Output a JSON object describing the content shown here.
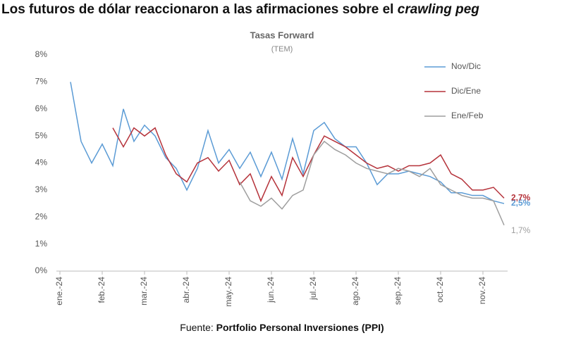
{
  "chart_data": {
    "type": "line",
    "title": "Los futuros de dólar reaccionaron a las afirmaciones sobre el",
    "title_emphasis": "crawling peg",
    "subtitle": "Tasas Forward",
    "subtitle_unit": "(TEM)",
    "source_label": "Fuente:",
    "source": "Portfolio Personal Inversiones (PPI)",
    "categories": [
      "ene.-24",
      null,
      null,
      null,
      "feb.-24",
      null,
      null,
      null,
      "mar.-24",
      null,
      null,
      null,
      "abr.-24",
      null,
      null,
      null,
      "may.-24",
      null,
      null,
      null,
      "jun.-24",
      null,
      null,
      null,
      "jul.-24",
      null,
      null,
      null,
      "ago.-24",
      null,
      null,
      null,
      "sep.-24",
      null,
      null,
      null,
      "oct.-24",
      null,
      null,
      null,
      "nov.-24",
      null,
      null
    ],
    "ylim": [
      0,
      8
    ],
    "yticks": [
      {
        "value": 0,
        "label": "0%"
      },
      {
        "value": 1,
        "label": "1%"
      },
      {
        "value": 2,
        "label": "2%"
      },
      {
        "value": 3,
        "label": "3%"
      },
      {
        "value": 4,
        "label": "4%"
      },
      {
        "value": 5,
        "label": "5%"
      },
      {
        "value": 6,
        "label": "6%"
      },
      {
        "value": 7,
        "label": "7%"
      },
      {
        "value": 8,
        "label": "8%"
      }
    ],
    "legend": "top-right",
    "series": [
      {
        "name": "Nov/Dic",
        "color": "#5b9bd5",
        "label_bold": true,
        "values": [
          null,
          7.0,
          4.8,
          4.0,
          4.7,
          3.9,
          6.0,
          4.8,
          5.4,
          5.0,
          4.2,
          3.8,
          3.0,
          3.8,
          5.2,
          4.0,
          4.5,
          3.8,
          4.4,
          3.5,
          4.4,
          3.4,
          4.9,
          3.6,
          5.2,
          5.5,
          4.9,
          4.6,
          4.6,
          4.0,
          3.2,
          3.6,
          3.6,
          3.7,
          3.6,
          3.5,
          3.3,
          2.9,
          2.9,
          2.8,
          2.8,
          2.6,
          2.5
        ],
        "value_labels": [
          null,
          null,
          null,
          null,
          null,
          null,
          null,
          null,
          null,
          null,
          null,
          null,
          null,
          null,
          null,
          null,
          null,
          null,
          null,
          null,
          null,
          null,
          null,
          null,
          null,
          null,
          null,
          null,
          null,
          null,
          null,
          null,
          null,
          null,
          null,
          null,
          null,
          null,
          null,
          null,
          null,
          null,
          "2,5%"
        ]
      },
      {
        "name": "Dic/Ene",
        "color": "#b5323a",
        "label_bold": true,
        "values": [
          null,
          null,
          null,
          null,
          null,
          5.3,
          4.6,
          5.3,
          5.0,
          5.3,
          4.3,
          3.6,
          3.3,
          4.0,
          4.2,
          3.7,
          4.1,
          3.2,
          3.6,
          2.6,
          3.5,
          2.8,
          4.2,
          3.5,
          4.3,
          5.0,
          4.8,
          4.6,
          4.3,
          4.0,
          3.8,
          3.9,
          3.7,
          3.9,
          3.9,
          4.0,
          4.3,
          3.6,
          3.4,
          3.0,
          3.0,
          3.1,
          2.7
        ],
        "value_labels": [
          null,
          null,
          null,
          null,
          null,
          null,
          null,
          null,
          null,
          null,
          null,
          null,
          null,
          null,
          null,
          null,
          null,
          null,
          null,
          null,
          null,
          null,
          null,
          null,
          null,
          null,
          null,
          null,
          null,
          null,
          null,
          null,
          null,
          null,
          null,
          null,
          null,
          null,
          null,
          null,
          null,
          null,
          "2,7%"
        ]
      },
      {
        "name": "Ene/Feb",
        "color": "#9e9e9e",
        "label_bold": false,
        "values": [
          null,
          null,
          null,
          null,
          null,
          null,
          null,
          null,
          null,
          null,
          null,
          null,
          null,
          null,
          null,
          null,
          null,
          3.3,
          2.6,
          2.4,
          2.7,
          2.3,
          2.8,
          3.0,
          4.3,
          4.8,
          4.5,
          4.3,
          4.0,
          3.8,
          3.7,
          3.6,
          3.8,
          3.7,
          3.5,
          3.8,
          3.2,
          3.0,
          2.8,
          2.7,
          2.7,
          2.6,
          1.7
        ],
        "value_labels": [
          null,
          null,
          null,
          null,
          null,
          null,
          null,
          null,
          null,
          null,
          null,
          null,
          null,
          null,
          null,
          null,
          null,
          null,
          null,
          null,
          null,
          null,
          null,
          null,
          null,
          null,
          null,
          null,
          null,
          null,
          null,
          null,
          null,
          null,
          null,
          null,
          null,
          null,
          null,
          null,
          null,
          null,
          "1,7%"
        ]
      }
    ]
  }
}
